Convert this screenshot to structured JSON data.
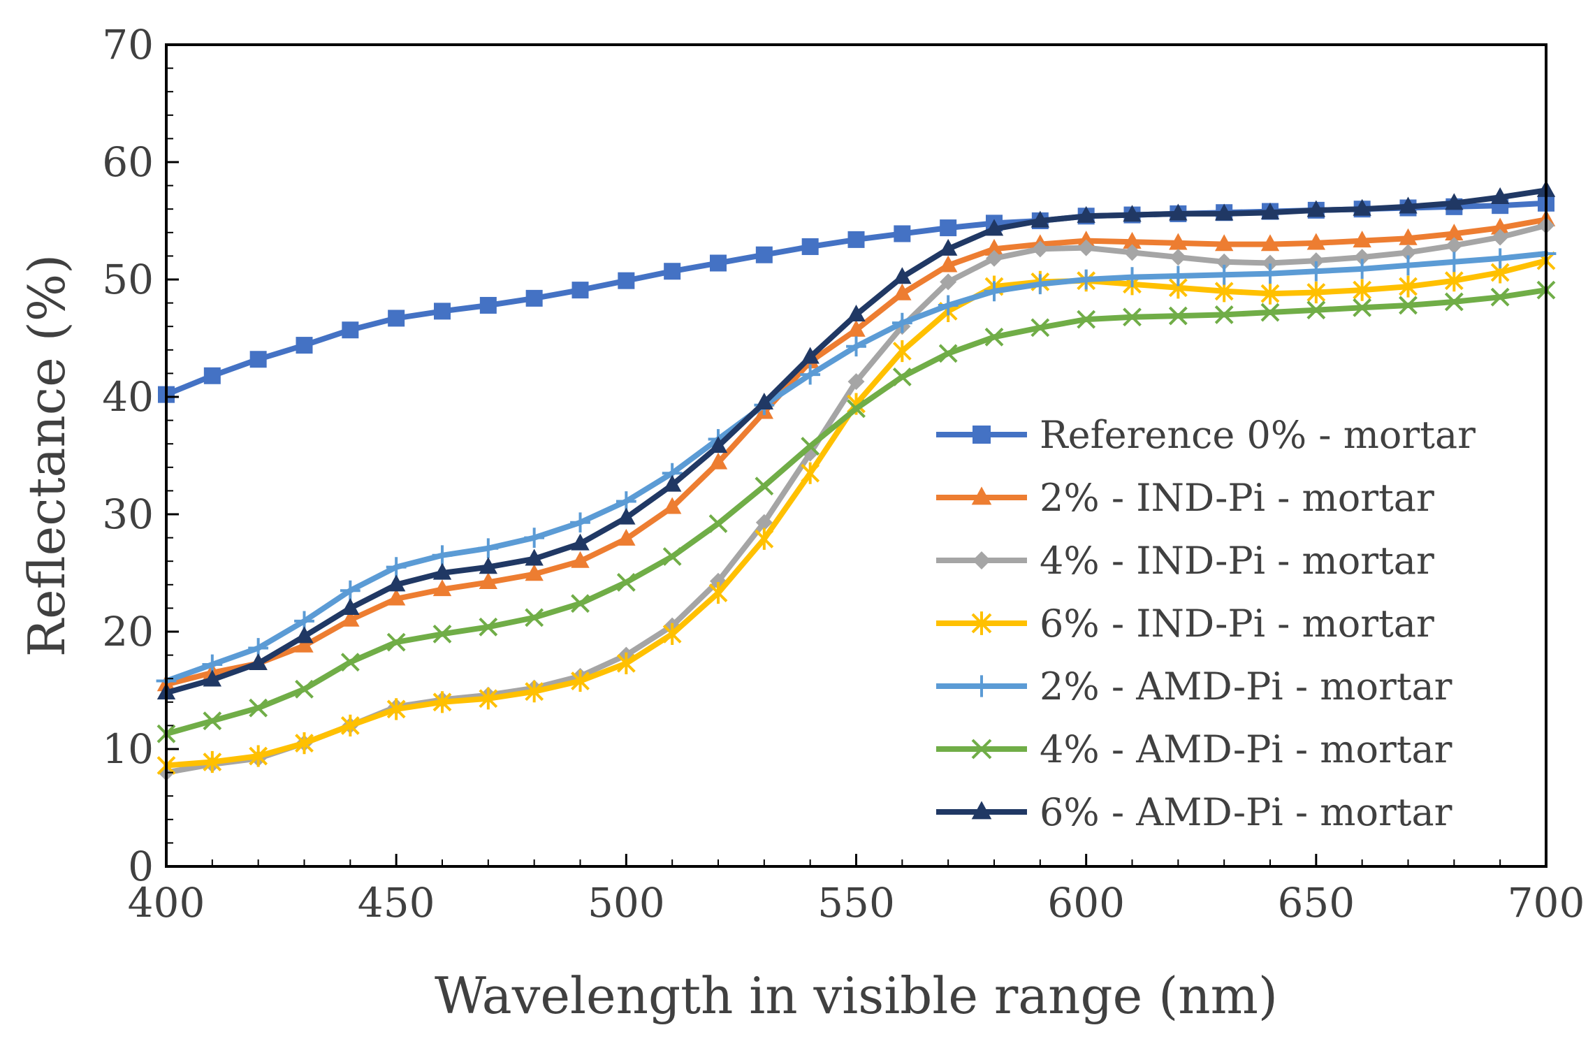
{
  "chart_data": {
    "type": "line",
    "title": "",
    "xlabel": "Wavelength in visible range (nm)",
    "ylabel": "Reflectance (%)",
    "xlim": [
      400,
      700
    ],
    "ylim": [
      0,
      70
    ],
    "xticks": [
      400,
      450,
      500,
      550,
      600,
      650,
      700
    ],
    "yticks": [
      0,
      10,
      20,
      30,
      40,
      50,
      60,
      70
    ],
    "grid": false,
    "legend_position": "center-right",
    "x": [
      400,
      410,
      420,
      430,
      440,
      450,
      460,
      470,
      480,
      490,
      500,
      510,
      520,
      530,
      540,
      550,
      560,
      570,
      580,
      590,
      600,
      610,
      620,
      630,
      640,
      650,
      660,
      670,
      680,
      690,
      700
    ],
    "series": [
      {
        "name": "Reference 0% - mortar",
        "color": "#4472C4",
        "marker": "square",
        "values": [
          40.2,
          41.8,
          43.2,
          44.4,
          45.7,
          46.7,
          47.3,
          47.8,
          48.4,
          49.1,
          49.9,
          50.7,
          51.4,
          52.1,
          52.8,
          53.4,
          53.9,
          54.4,
          54.8,
          55.0,
          55.4,
          55.5,
          55.6,
          55.7,
          55.8,
          55.9,
          56.0,
          56.1,
          56.2,
          56.3,
          56.5
        ]
      },
      {
        "name": "2% - IND-Pi - mortar",
        "color": "#ED7D31",
        "marker": "triangle",
        "values": [
          15.5,
          16.5,
          17.3,
          18.8,
          21.0,
          22.8,
          23.6,
          24.2,
          24.9,
          26.0,
          27.9,
          30.6,
          34.4,
          38.7,
          43.0,
          45.7,
          48.8,
          51.2,
          52.6,
          53.0,
          53.3,
          53.2,
          53.1,
          53.0,
          53.0,
          53.1,
          53.3,
          53.5,
          53.9,
          54.4,
          55.1
        ]
      },
      {
        "name": "4% - IND-Pi - mortar",
        "color": "#A5A5A5",
        "marker": "diamond",
        "values": [
          8.0,
          8.7,
          9.2,
          10.5,
          12.0,
          13.6,
          14.2,
          14.6,
          15.2,
          16.2,
          18.0,
          20.5,
          24.3,
          29.3,
          35.2,
          41.3,
          46.0,
          49.8,
          51.8,
          52.6,
          52.7,
          52.3,
          51.9,
          51.5,
          51.4,
          51.6,
          51.9,
          52.3,
          52.9,
          53.6,
          54.6
        ]
      },
      {
        "name": "6% - IND-Pi - mortar",
        "color": "#FFC000",
        "marker": "asterisk",
        "values": [
          8.6,
          8.9,
          9.4,
          10.5,
          12.0,
          13.4,
          14.0,
          14.3,
          14.9,
          15.8,
          17.3,
          19.8,
          23.3,
          27.9,
          33.5,
          39.4,
          43.9,
          47.3,
          49.4,
          49.8,
          49.9,
          49.6,
          49.3,
          49.0,
          48.8,
          48.9,
          49.1,
          49.4,
          49.9,
          50.6,
          51.6
        ]
      },
      {
        "name": "2% - AMD-Pi - mortar",
        "color": "#5B9BD5",
        "marker": "plus",
        "values": [
          15.8,
          17.2,
          18.6,
          20.9,
          23.5,
          25.5,
          26.5,
          27.1,
          28.0,
          29.3,
          31.1,
          33.5,
          36.4,
          39.3,
          41.9,
          44.3,
          46.3,
          47.8,
          49.0,
          49.6,
          50.0,
          50.2,
          50.3,
          50.4,
          50.5,
          50.7,
          50.9,
          51.2,
          51.5,
          51.8,
          52.2
        ]
      },
      {
        "name": "4% - AMD-Pi - mortar",
        "color": "#70AD47",
        "marker": "x",
        "values": [
          11.3,
          12.4,
          13.5,
          15.1,
          17.4,
          19.1,
          19.8,
          20.4,
          21.2,
          22.4,
          24.2,
          26.4,
          29.2,
          32.4,
          35.8,
          39.0,
          41.7,
          43.7,
          45.1,
          45.9,
          46.6,
          46.8,
          46.9,
          47.0,
          47.2,
          47.4,
          47.6,
          47.8,
          48.1,
          48.5,
          49.1
        ]
      },
      {
        "name": "6% - AMD-Pi - mortar",
        "color": "#203864",
        "marker": "triangle",
        "values": [
          14.8,
          15.9,
          17.3,
          19.6,
          22.0,
          24.0,
          25.0,
          25.5,
          26.2,
          27.5,
          29.7,
          32.5,
          35.8,
          39.5,
          43.4,
          47.0,
          50.2,
          52.6,
          54.3,
          55.0,
          55.4,
          55.5,
          55.6,
          55.6,
          55.7,
          55.9,
          56.0,
          56.2,
          56.5,
          57.0,
          57.6
        ]
      }
    ]
  }
}
